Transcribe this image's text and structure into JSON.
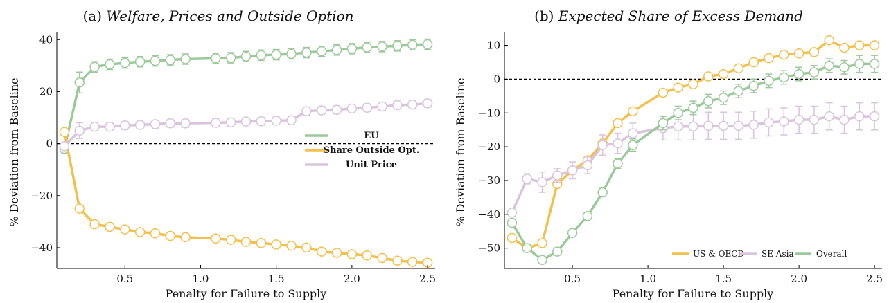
{
  "chart_data": [
    {
      "type": "line",
      "panel_label": "(a)",
      "title": "Welfare, Prices and Outside Option",
      "xlabel": "Penalty for Failure to Supply",
      "ylabel": "% Deviation from Baseline",
      "xlim": [
        0.05,
        2.55
      ],
      "ylim": [
        -48,
        43
      ],
      "xticks": [
        0.5,
        1.0,
        1.5,
        2.0,
        2.5
      ],
      "xtick_labels": [
        "0.5",
        "1.0",
        "1.5",
        "2.0",
        "2.5"
      ],
      "yticks": [
        -40,
        -20,
        0,
        20,
        40
      ],
      "ytick_labels": [
        "−40",
        "−20",
        "0",
        "20",
        "40"
      ],
      "zero_line": true,
      "legend_position": "center-right",
      "x": [
        0.1,
        0.2,
        0.3,
        0.4,
        0.5,
        0.6,
        0.7,
        0.8,
        0.9,
        1.1,
        1.2,
        1.3,
        1.4,
        1.5,
        1.6,
        1.7,
        1.8,
        1.9,
        2.0,
        2.1,
        2.2,
        2.3,
        2.4,
        2.5
      ],
      "series": [
        {
          "name": "EU",
          "color": "#9cc99a",
          "values": [
            -2,
            23.5,
            29.5,
            30.5,
            31,
            31.5,
            31.8,
            32.2,
            32.5,
            32.8,
            33,
            33.5,
            34,
            34.2,
            34.5,
            35,
            35.5,
            36,
            36.5,
            37,
            37.3,
            37.6,
            38,
            38.2
          ],
          "errors": [
            1.5,
            4,
            2,
            2,
            2,
            2,
            2,
            2,
            2,
            2,
            2,
            2,
            2,
            2,
            2,
            2,
            2,
            2,
            2,
            2,
            2,
            2,
            2,
            2
          ]
        },
        {
          "name": "Share Outside Opt.",
          "color": "#f2c04d",
          "values": [
            4.5,
            -25,
            -31,
            -32,
            -33,
            -34,
            -34.5,
            -35.5,
            -36,
            -36.5,
            -37,
            -37.8,
            -38.2,
            -38.8,
            -39.3,
            -40,
            -41.5,
            -42,
            -42.5,
            -43,
            -44,
            -45,
            -45.5,
            -45.8
          ],
          "errors": [
            0.5,
            0.8,
            0.8,
            0.8,
            0.8,
            0.8,
            0.8,
            0.8,
            0.8,
            0.8,
            0.8,
            0.8,
            0.8,
            0.8,
            0.8,
            0.8,
            0.8,
            0.8,
            0.8,
            0.8,
            0.8,
            0.8,
            0.8,
            0.8
          ]
        },
        {
          "name": "Unit Price",
          "color": "#d9c3dd",
          "values": [
            -1,
            5,
            6.5,
            6.5,
            7,
            7.2,
            7.5,
            7.8,
            7.8,
            8,
            8.2,
            8.5,
            8.6,
            8.8,
            9,
            12.5,
            12.8,
            13,
            13.5,
            13.8,
            14.3,
            14.8,
            15,
            15.5
          ],
          "errors": [
            1,
            3,
            1.5,
            1.5,
            1.5,
            1.5,
            1.5,
            1.5,
            1.5,
            1.5,
            1.5,
            1.5,
            1.5,
            1.5,
            1.5,
            1.5,
            1.5,
            1.5,
            1.5,
            1.5,
            1.5,
            1.5,
            1.5,
            1.5
          ]
        }
      ]
    },
    {
      "type": "line",
      "panel_label": "(b)",
      "title": "Expected Share of Excess Demand",
      "xlabel": "Penalty for Failure to Supply",
      "ylabel": "% Deviation from Baseline",
      "xlim": [
        0.05,
        2.55
      ],
      "ylim": [
        -56,
        14
      ],
      "xticks": [
        0.5,
        1.0,
        1.5,
        2.0,
        2.5
      ],
      "xtick_labels": [
        "0.5",
        "1.0",
        "1.5",
        "2.0",
        "2.5"
      ],
      "yticks": [
        -50,
        -40,
        -30,
        -20,
        -10,
        0,
        10
      ],
      "ytick_labels": [
        "−50",
        "−40",
        "−30",
        "−20",
        "−10",
        "0",
        "10"
      ],
      "zero_line": true,
      "legend_position": "lower-right",
      "x": [
        0.1,
        0.2,
        0.3,
        0.4,
        0.5,
        0.6,
        0.7,
        0.8,
        0.9,
        1.1,
        1.2,
        1.3,
        1.4,
        1.5,
        1.6,
        1.7,
        1.8,
        1.9,
        2.0,
        2.1,
        2.2,
        2.3,
        2.4,
        2.5
      ],
      "series": [
        {
          "name": "US & OECD",
          "color": "#f2c04d",
          "values": [
            -47,
            -50,
            -48.5,
            -31,
            -27,
            -24,
            -19,
            -13,
            -9.5,
            -4,
            -2.5,
            -1.5,
            0.8,
            1.5,
            3.2,
            5,
            6.2,
            7.2,
            7.6,
            8,
            11.5,
            9.3,
            10,
            10
          ],
          "errors": [
            0,
            0,
            0,
            0,
            0,
            0,
            0,
            0,
            0,
            0,
            0,
            0,
            0,
            0,
            0,
            0,
            0,
            0,
            0,
            0,
            0,
            0,
            0,
            0
          ]
        },
        {
          "name": "SE Asia",
          "color": "#d9c3dd",
          "values": [
            -39.5,
            -29.5,
            -30.5,
            -28.5,
            -27,
            -25.5,
            -19.5,
            -19,
            -16,
            -14.5,
            -14,
            -14,
            -13.8,
            -13.8,
            -13.8,
            -13.5,
            -12.8,
            -12.5,
            -12,
            -12,
            -11,
            -12,
            -11,
            -11
          ],
          "errors": [
            1,
            1.5,
            3,
            2,
            2.5,
            2.5,
            3,
            3,
            3,
            3.5,
            4,
            4,
            4,
            4,
            4,
            4,
            4,
            4,
            4,
            4,
            4,
            4,
            4,
            4
          ]
        },
        {
          "name": "Overall",
          "color": "#9cc99a",
          "values": [
            -42.5,
            -50,
            -53.5,
            -51,
            -45.5,
            -40.5,
            -33.5,
            -25,
            -19.5,
            -13,
            -10,
            -8.5,
            -6.5,
            -5.5,
            -3.5,
            -2,
            -0.5,
            0.5,
            1.5,
            2,
            4,
            3.5,
            4.5,
            4.5
          ],
          "errors": [
            1,
            0.8,
            1,
            1,
            1,
            1,
            1.2,
            1.5,
            1.8,
            2,
            2,
            2,
            2,
            2,
            2,
            2,
            2,
            2,
            2,
            2,
            2,
            2,
            2.5,
            2.5
          ]
        }
      ]
    }
  ]
}
